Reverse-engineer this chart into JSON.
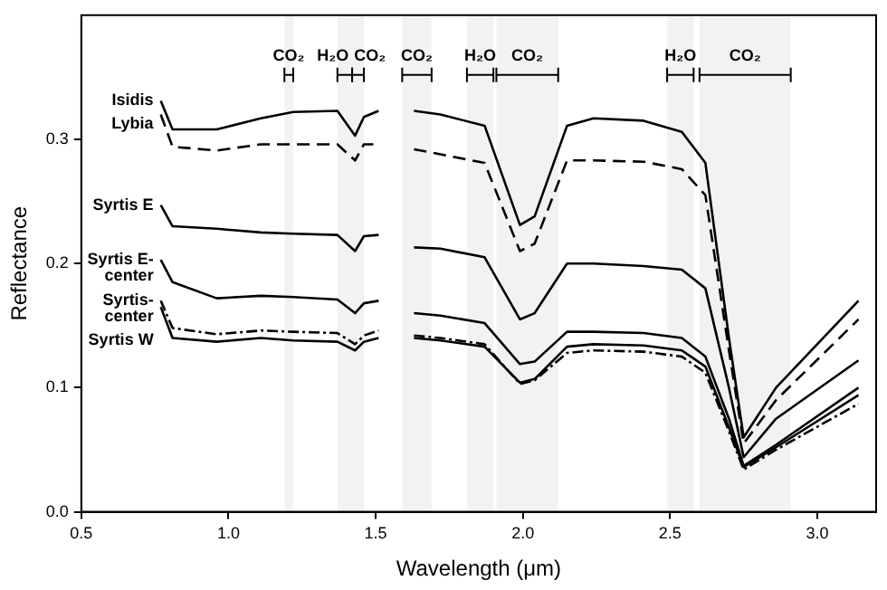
{
  "chart_data": {
    "type": "line",
    "xlabel": "Wavelength (μm)",
    "ylabel": "Reflectance",
    "x": [
      0.77,
      0.81,
      0.96,
      1.11,
      1.22,
      1.37,
      1.43,
      1.46,
      1.51,
      1.57,
      1.63,
      1.72,
      1.87,
      1.99,
      2.04,
      2.15,
      2.24,
      2.41,
      2.54,
      2.62,
      2.7,
      2.75,
      2.86,
      3.14
    ],
    "series": [
      {
        "name": "Isidis",
        "color": "#000000",
        "line_style": "solid",
        "values": [
          0.331,
          0.308,
          0.308,
          0.317,
          0.322,
          0.323,
          0.303,
          0.318,
          0.323,
          null,
          0.323,
          0.32,
          0.311,
          0.231,
          0.238,
          0.311,
          0.317,
          0.315,
          0.306,
          0.281,
          0.14,
          0.06,
          0.1,
          0.17
        ]
      },
      {
        "name": "Lybia",
        "color": "#000000",
        "line_style": "dashed",
        "values": [
          0.32,
          0.294,
          0.291,
          0.296,
          0.296,
          0.296,
          0.283,
          0.296,
          0.296,
          null,
          0.292,
          0.288,
          0.281,
          0.21,
          0.216,
          0.283,
          0.283,
          0.282,
          0.276,
          0.255,
          0.13,
          0.055,
          0.09,
          0.155
        ]
      },
      {
        "name": "Syrtis E",
        "color": "#000000",
        "line_style": "solid",
        "values": [
          0.247,
          0.23,
          0.228,
          0.225,
          0.224,
          0.223,
          0.21,
          0.222,
          0.223,
          null,
          0.213,
          0.212,
          0.205,
          0.155,
          0.16,
          0.2,
          0.2,
          0.198,
          0.195,
          0.18,
          0.1,
          0.044,
          0.075,
          0.122
        ]
      },
      {
        "name": "Syrtis E-center",
        "color": "#000000",
        "line_style": "solid",
        "values": [
          0.203,
          0.185,
          0.172,
          0.174,
          0.173,
          0.171,
          0.16,
          0.168,
          0.17,
          null,
          0.16,
          0.158,
          0.152,
          0.119,
          0.121,
          0.145,
          0.145,
          0.144,
          0.14,
          0.125,
          0.075,
          0.037,
          0.054,
          0.1
        ]
      },
      {
        "name": "Syrtis-center",
        "color": "#000000",
        "line_style": "dotted",
        "values": [
          0.17,
          0.148,
          0.143,
          0.146,
          0.145,
          0.144,
          0.135,
          0.142,
          0.146,
          null,
          0.142,
          0.14,
          0.135,
          0.103,
          0.106,
          0.128,
          0.13,
          0.129,
          0.125,
          0.112,
          0.065,
          0.034,
          0.05,
          0.087
        ]
      },
      {
        "name": "Syrtis W",
        "color": "#000000",
        "line_style": "solid",
        "values": [
          0.165,
          0.14,
          0.137,
          0.14,
          0.138,
          0.137,
          0.13,
          0.137,
          0.14,
          null,
          0.14,
          0.138,
          0.133,
          0.104,
          0.107,
          0.133,
          0.135,
          0.134,
          0.13,
          0.117,
          0.068,
          0.036,
          0.052,
          0.094
        ]
      }
    ],
    "bands": [
      {
        "axis": "x",
        "from": 1.19,
        "to": 1.22,
        "label": "CO₂"
      },
      {
        "axis": "x",
        "from": 1.37,
        "to": 1.42,
        "label": "H₂O"
      },
      {
        "axis": "x",
        "from": 1.42,
        "to": 1.46,
        "label": "CO₂"
      },
      {
        "axis": "x",
        "from": 1.59,
        "to": 1.69,
        "label": "CO₂"
      },
      {
        "axis": "x",
        "from": 1.81,
        "to": 1.9,
        "label": "H₂O"
      },
      {
        "axis": "x",
        "from": 1.91,
        "to": 2.12,
        "label": "CO₂"
      },
      {
        "axis": "x",
        "from": 2.49,
        "to": 2.58,
        "label": "H₂O"
      },
      {
        "axis": "x",
        "from": 2.6,
        "to": 2.91,
        "label": "CO₂"
      }
    ],
    "xlim": [
      0.5,
      3.2
    ],
    "xticks": [
      {
        "value": 0.5,
        "label": "0.5"
      },
      {
        "value": 1,
        "label": "1.0"
      },
      {
        "value": 1.5,
        "label": "1.5"
      },
      {
        "value": 2,
        "label": "2.0"
      },
      {
        "value": 2.5,
        "label": "2.5"
      },
      {
        "value": 3,
        "label": "3.0"
      }
    ],
    "ylim": [
      0,
      0.4
    ],
    "yticks": [
      {
        "value": 0,
        "label": "0.0"
      },
      {
        "value": 0.1,
        "label": "0.1"
      },
      {
        "value": 0.2,
        "label": "0.2"
      },
      {
        "value": 0.3,
        "label": "0.3"
      }
    ],
    "grid": false,
    "legend": false,
    "marker": "none"
  }
}
